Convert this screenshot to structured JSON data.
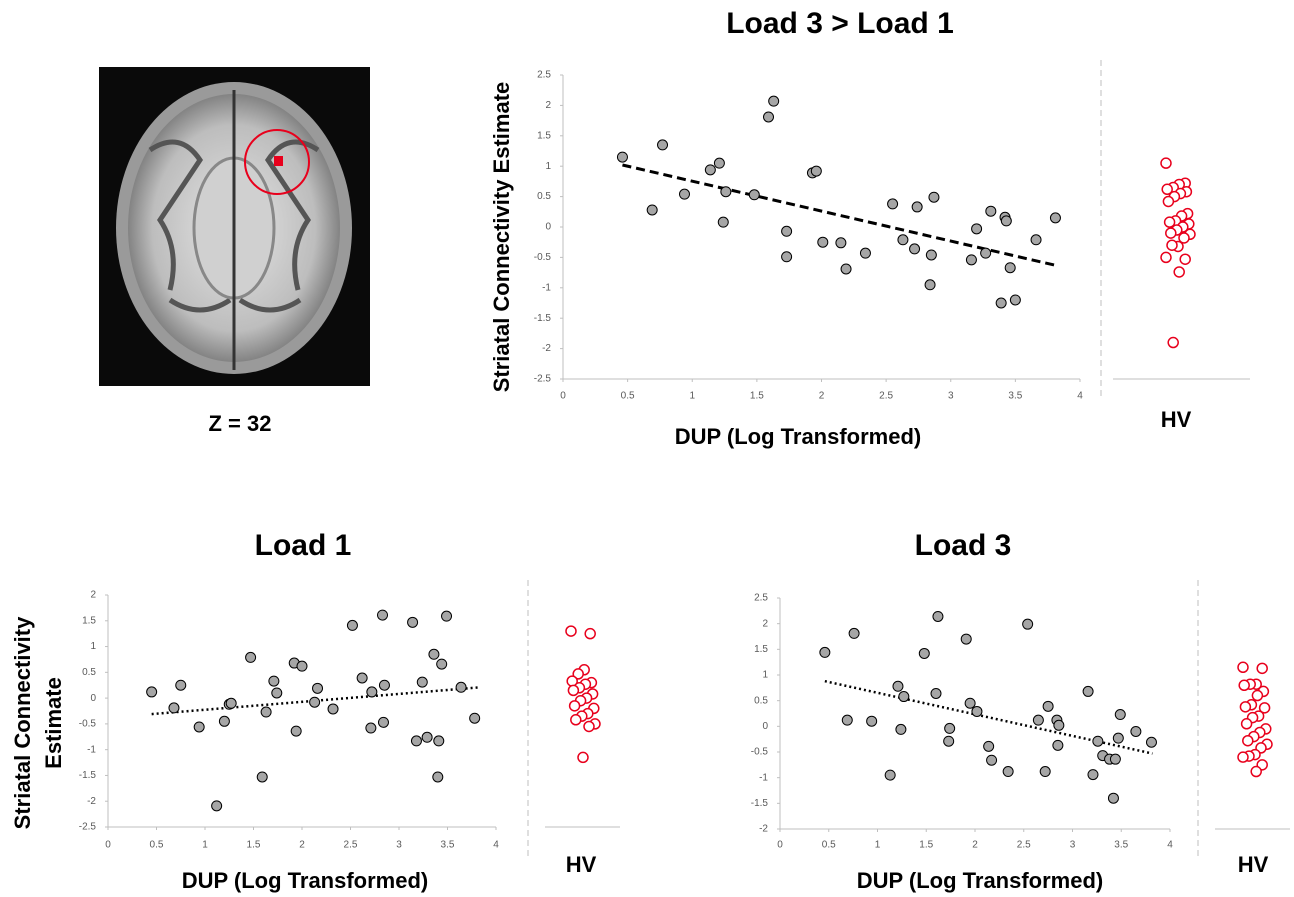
{
  "brain_image": {
    "caption": "Z = 32"
  },
  "chart_data": [
    {
      "type": "scatter",
      "title": "Load  3 > Load 1",
      "xlabel": "DUP (Log Transformed)",
      "ylabel": "Striatal Connectivity Estimate",
      "x": [
        0.46,
        0.69,
        0.77,
        0.94,
        1.14,
        1.21,
        1.24,
        1.26,
        1.48,
        1.59,
        1.63,
        1.73,
        1.73,
        1.93,
        1.96,
        2.01,
        2.15,
        2.19,
        2.34,
        2.55,
        2.63,
        2.72,
        2.74,
        2.84,
        2.85,
        2.87,
        3.16,
        3.2,
        3.27,
        3.31,
        3.39,
        3.42,
        3.43,
        3.46,
        3.5,
        3.66,
        3.81
      ],
      "values": [
        1.15,
        0.28,
        1.35,
        0.54,
        0.94,
        1.05,
        0.08,
        0.58,
        0.53,
        1.81,
        2.07,
        -0.07,
        -0.49,
        0.89,
        0.92,
        -0.25,
        -0.26,
        -0.69,
        -0.43,
        0.38,
        -0.21,
        -0.36,
        0.33,
        -0.95,
        -0.46,
        0.49,
        -0.54,
        -0.03,
        -0.43,
        0.26,
        -1.25,
        0.16,
        0.1,
        -0.67,
        -1.2,
        -0.21,
        0.15
      ],
      "trendline": {
        "x": [
          0.46,
          3.81
        ],
        "y": [
          1.02,
          -0.63
        ],
        "style": "dashed"
      },
      "hv_label": "HV",
      "hv_values": [
        1.05,
        0.72,
        0.7,
        0.65,
        0.62,
        0.58,
        0.55,
        0.5,
        0.42,
        0.22,
        0.18,
        0.1,
        0.08,
        0.05,
        0.0,
        -0.05,
        -0.1,
        -0.12,
        -0.18,
        -0.32,
        -0.3,
        -0.5,
        -0.53,
        -0.74,
        -1.9
      ],
      "xlim": [
        0,
        4
      ],
      "xticks": [
        0,
        0.5,
        1,
        1.5,
        2,
        2.5,
        3,
        3.5,
        4
      ],
      "ylim": [
        -2.5,
        2.5
      ],
      "yticks": [
        -2.5,
        -2,
        -1.5,
        -1,
        -0.5,
        0,
        0.5,
        1,
        1.5,
        2,
        2.5
      ]
    },
    {
      "type": "scatter",
      "title": "Load 1",
      "xlabel": "DUP (Log Transformed)",
      "ylabel": [
        "Striatal Connectivity",
        "Estimate"
      ],
      "x": [
        0.45,
        0.68,
        0.75,
        0.94,
        1.12,
        1.2,
        1.25,
        1.27,
        1.47,
        1.59,
        1.63,
        1.71,
        1.74,
        1.92,
        1.94,
        2.0,
        2.13,
        2.16,
        2.32,
        2.52,
        2.62,
        2.71,
        2.72,
        2.83,
        2.84,
        2.85,
        3.14,
        3.18,
        3.24,
        3.29,
        3.36,
        3.41,
        3.4,
        3.44,
        3.49,
        3.64,
        3.78
      ],
      "values": [
        0.12,
        -0.19,
        0.25,
        -0.56,
        -2.09,
        -0.45,
        -0.12,
        -0.1,
        0.79,
        -1.53,
        -0.27,
        0.33,
        0.1,
        0.68,
        -0.64,
        0.62,
        -0.08,
        0.19,
        -0.21,
        1.41,
        0.39,
        -0.58,
        0.12,
        1.61,
        -0.47,
        0.25,
        1.47,
        -0.83,
        0.31,
        -0.76,
        0.85,
        -0.83,
        -1.53,
        0.66,
        1.59,
        0.21,
        -0.39
      ],
      "trendline": {
        "x": [
          0.45,
          3.84
        ],
        "y": [
          -0.31,
          0.21
        ],
        "style": "dotted"
      },
      "hv_label": "HV",
      "hv_values": [
        1.3,
        1.25,
        0.55,
        0.47,
        0.33,
        0.3,
        0.27,
        0.2,
        0.15,
        0.08,
        0.0,
        -0.05,
        -0.15,
        -0.2,
        -0.3,
        -0.35,
        -0.42,
        -0.5,
        -0.55,
        -1.15
      ],
      "xlim": [
        0,
        4
      ],
      "xticks": [
        0,
        0.5,
        1,
        1.5,
        2,
        2.5,
        3,
        3.5,
        4
      ],
      "ylim": [
        -2.5,
        2
      ],
      "yticks": [
        -2.5,
        -2,
        -1.5,
        -1,
        -0.5,
        0,
        0.5,
        1,
        1.5,
        2
      ]
    },
    {
      "type": "scatter",
      "title": "Load 3",
      "xlabel": "DUP (Log Transformed)",
      "x": [
        0.46,
        0.69,
        0.76,
        0.94,
        1.13,
        1.21,
        1.24,
        1.27,
        1.48,
        1.6,
        1.62,
        1.73,
        1.74,
        1.91,
        1.95,
        2.02,
        2.14,
        2.17,
        2.34,
        2.54,
        2.65,
        2.72,
        2.75,
        2.84,
        2.86,
        2.85,
        3.16,
        3.21,
        3.26,
        3.31,
        3.38,
        3.42,
        3.44,
        3.49,
        3.47,
        3.65,
        3.81
      ],
      "values": [
        1.44,
        0.12,
        1.81,
        0.1,
        -0.95,
        0.78,
        -0.06,
        0.58,
        1.42,
        0.64,
        2.14,
        -0.29,
        -0.04,
        1.7,
        0.45,
        0.29,
        -0.39,
        -0.66,
        -0.88,
        1.99,
        0.12,
        -0.88,
        0.39,
        0.12,
        0.02,
        -0.37,
        0.68,
        -0.94,
        -0.29,
        -0.57,
        -0.64,
        -1.4,
        -0.64,
        0.23,
        -0.23,
        -0.1,
        -0.31
      ],
      "trendline": {
        "x": [
          0.46,
          3.82
        ],
        "y": [
          0.88,
          -0.53
        ],
        "style": "dotted"
      },
      "hv_label": "HV",
      "hv_values": [
        1.15,
        1.13,
        0.82,
        0.82,
        0.8,
        0.68,
        0.6,
        0.42,
        0.38,
        0.36,
        0.2,
        0.17,
        0.05,
        -0.05,
        -0.12,
        -0.2,
        -0.28,
        -0.35,
        -0.42,
        -0.55,
        -0.58,
        -0.6,
        -0.75,
        -0.88
      ],
      "xlim": [
        0,
        4
      ],
      "xticks": [
        0,
        0.5,
        1,
        1.5,
        2,
        2.5,
        3,
        3.5,
        4
      ],
      "ylim": [
        -2,
        2.5
      ],
      "yticks": [
        -2,
        -1.5,
        -1,
        -0.5,
        0,
        0.5,
        1,
        1.5,
        2,
        2.5
      ]
    }
  ]
}
